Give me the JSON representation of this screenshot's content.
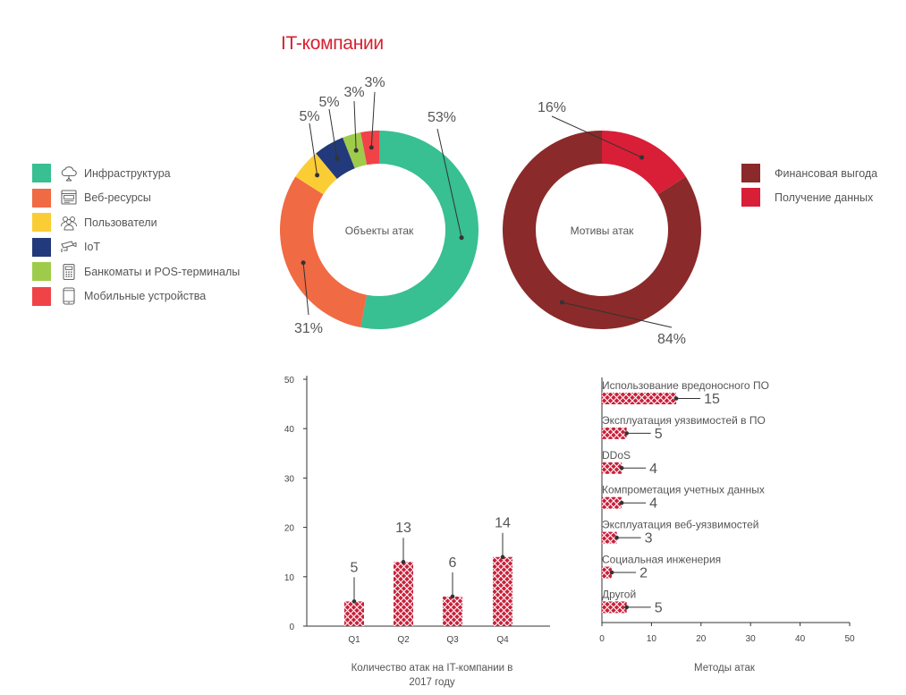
{
  "title": "IT-компании",
  "colors": {
    "title": "#d6202f",
    "bar": "#c8203a",
    "segment_infra": "#38bf92",
    "segment_web": "#f06a43",
    "segment_users": "#fbcd35",
    "segment_iot": "#223a7b",
    "segment_atm": "#9fcb4b",
    "segment_mobile": "#ef4348",
    "motive_financial": "#8b2a2a",
    "motive_data": "#d91e37"
  },
  "legend_objects": [
    {
      "label": "Инфраструктура",
      "icon": "cloud-network-icon",
      "color": "#38bf92"
    },
    {
      "label": "Веб-ресурсы",
      "icon": "web-browser-icon",
      "color": "#f06a43"
    },
    {
      "label": "Пользователи",
      "icon": "users-icon",
      "color": "#fbcd35"
    },
    {
      "label": "IoT",
      "icon": "iot-camera-icon",
      "color": "#223a7b"
    },
    {
      "label": "Банкоматы и POS-терминалы",
      "icon": "pos-terminal-icon",
      "color": "#9fcb4b"
    },
    {
      "label": "Мобильные устройства",
      "icon": "mobile-device-icon",
      "color": "#ef4348"
    }
  ],
  "legend_motives": [
    {
      "label": "Финансовая выгода",
      "color": "#8b2a2a"
    },
    {
      "label": "Получение данных",
      "color": "#d91e37"
    }
  ],
  "chart_data": [
    {
      "type": "pie",
      "title": "Объекты атак",
      "labels": [
        "Инфраструктура",
        "Веб-ресурсы",
        "Пользователи",
        "IoT",
        "Банкоматы и POS-терминалы",
        "Мобильные устройства"
      ],
      "values": [
        53,
        31,
        5,
        5,
        3,
        3
      ],
      "value_labels": [
        "53%",
        "31%",
        "5%",
        "5%",
        "3%",
        "3%"
      ],
      "colors": [
        "#38bf92",
        "#f06a43",
        "#fbcd35",
        "#223a7b",
        "#9fcb4b",
        "#ef4348"
      ]
    },
    {
      "type": "pie",
      "title": "Мотивы атак",
      "labels": [
        "Финансовая выгода",
        "Получение данных"
      ],
      "values": [
        84,
        16
      ],
      "value_labels": [
        "84%",
        "16%"
      ],
      "colors": [
        "#8b2a2a",
        "#d91e37"
      ]
    },
    {
      "type": "bar",
      "title": "Количество атак на IT-компании в 2017 году",
      "categories": [
        "Q1",
        "Q2",
        "Q3",
        "Q4"
      ],
      "values": [
        5,
        13,
        6,
        14
      ],
      "ylim": [
        0,
        50
      ],
      "yticks": [
        0,
        10,
        20,
        30,
        40,
        50
      ]
    },
    {
      "type": "bar",
      "orientation": "horizontal",
      "title": "Методы атак",
      "categories": [
        "Использование вредоносного ПО",
        "Эксплуатация уязвимостей в ПО",
        "DDoS",
        "Компрометация учетных данных",
        "Эксплуатация веб-уязвимостей",
        "Социальная инженерия",
        "Другой"
      ],
      "values": [
        15,
        5,
        4,
        4,
        3,
        2,
        5
      ],
      "xlim": [
        0,
        50
      ],
      "xticks": [
        0,
        10,
        20,
        30,
        40,
        50
      ]
    }
  ]
}
